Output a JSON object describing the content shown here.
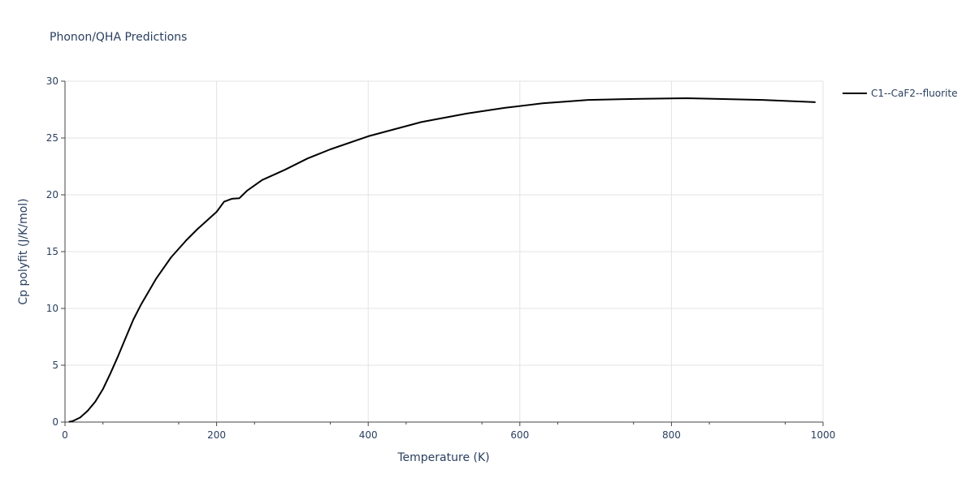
{
  "chart_data": {
    "type": "line",
    "title": "Phonon/QHA Predictions",
    "xlabel": "Temperature (K)",
    "ylabel": "Cp polyfit (J/K/mol)",
    "xlim": [
      0,
      1000
    ],
    "ylim": [
      0,
      30
    ],
    "xticks": [
      0,
      200,
      400,
      600,
      800,
      1000
    ],
    "yticks": [
      0,
      5,
      10,
      15,
      20,
      25,
      30
    ],
    "grid": true,
    "legend_position": "top-right",
    "series": [
      {
        "name": "C1--CaF2--fluorite",
        "color": "#000000",
        "x": [
          5,
          10,
          20,
          30,
          40,
          50,
          60,
          70,
          80,
          90,
          100,
          120,
          140,
          160,
          175,
          190,
          200,
          210,
          220,
          230,
          240,
          260,
          290,
          320,
          350,
          400,
          470,
          530,
          580,
          630,
          690,
          760,
          820,
          920,
          990
        ],
        "y": [
          0.02,
          0.08,
          0.4,
          1.0,
          1.8,
          2.9,
          4.3,
          5.8,
          7.4,
          9.0,
          10.3,
          12.6,
          14.5,
          16.0,
          17.0,
          17.9,
          18.5,
          19.4,
          19.65,
          19.7,
          20.35,
          21.3,
          22.2,
          23.2,
          24.0,
          25.15,
          26.4,
          27.15,
          27.65,
          28.05,
          28.35,
          28.45,
          28.5,
          28.35,
          28.15
        ]
      }
    ]
  }
}
